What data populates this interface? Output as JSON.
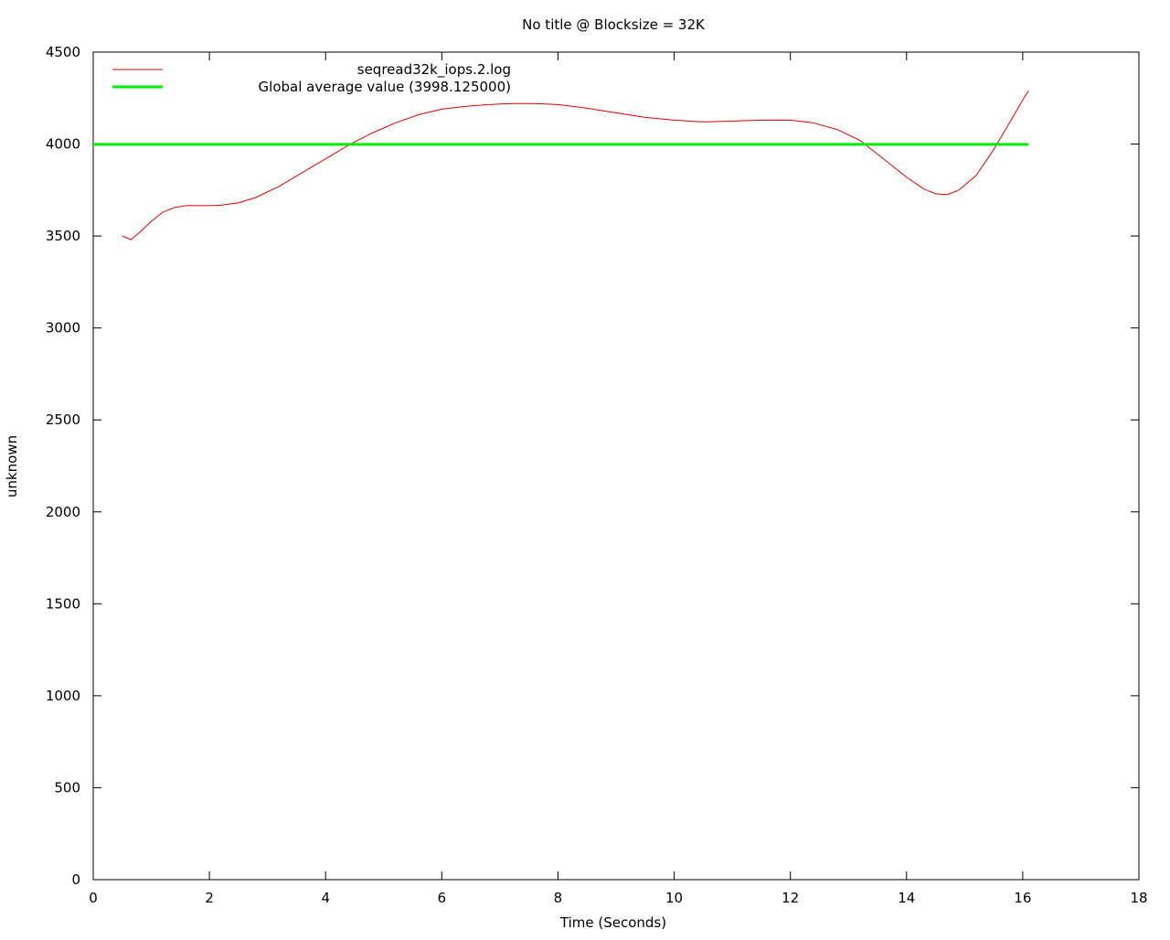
{
  "chart_data": {
    "type": "line",
    "title": "No title @ Blocksize = 32K",
    "xlabel": "Time (Seconds)",
    "ylabel": "unknown",
    "xlim": [
      0,
      18
    ],
    "ylim": [
      0,
      4500
    ],
    "x_ticks": [
      0,
      2,
      4,
      6,
      8,
      10,
      12,
      14,
      16,
      18
    ],
    "y_ticks": [
      0,
      500,
      1000,
      1500,
      2000,
      2500,
      3000,
      3500,
      4000,
      4500
    ],
    "grid": false,
    "legend_position": "top-left",
    "series": [
      {
        "name": "seqread32k_iops.2.log",
        "color": "#e00000",
        "line_width": 1,
        "x": [
          0.5,
          0.65,
          0.8,
          1.0,
          1.2,
          1.4,
          1.6,
          1.8,
          2.0,
          2.2,
          2.5,
          2.8,
          3.2,
          3.6,
          4.0,
          4.4,
          4.8,
          5.2,
          5.6,
          6.0,
          6.4,
          6.8,
          7.2,
          7.6,
          8.0,
          8.5,
          9.0,
          9.5,
          10.0,
          10.5,
          11.0,
          11.5,
          12.0,
          12.4,
          12.8,
          13.2,
          13.6,
          14.0,
          14.3,
          14.5,
          14.7,
          14.9,
          15.2,
          15.5,
          15.8,
          16.0,
          16.1
        ],
        "y": [
          3500,
          3480,
          3520,
          3580,
          3630,
          3655,
          3665,
          3665,
          3665,
          3668,
          3680,
          3710,
          3770,
          3845,
          3920,
          3995,
          4060,
          4115,
          4160,
          4190,
          4205,
          4215,
          4220,
          4220,
          4215,
          4195,
          4170,
          4145,
          4130,
          4120,
          4125,
          4130,
          4130,
          4115,
          4080,
          4020,
          3920,
          3820,
          3755,
          3730,
          3725,
          3750,
          3830,
          3970,
          4130,
          4240,
          4290
        ]
      },
      {
        "name": "Global average value (3998.125000)",
        "color": "#00ee00",
        "line_width": 3,
        "x": [
          0,
          16.1
        ],
        "y": [
          3998.125,
          3998.125
        ]
      }
    ]
  }
}
